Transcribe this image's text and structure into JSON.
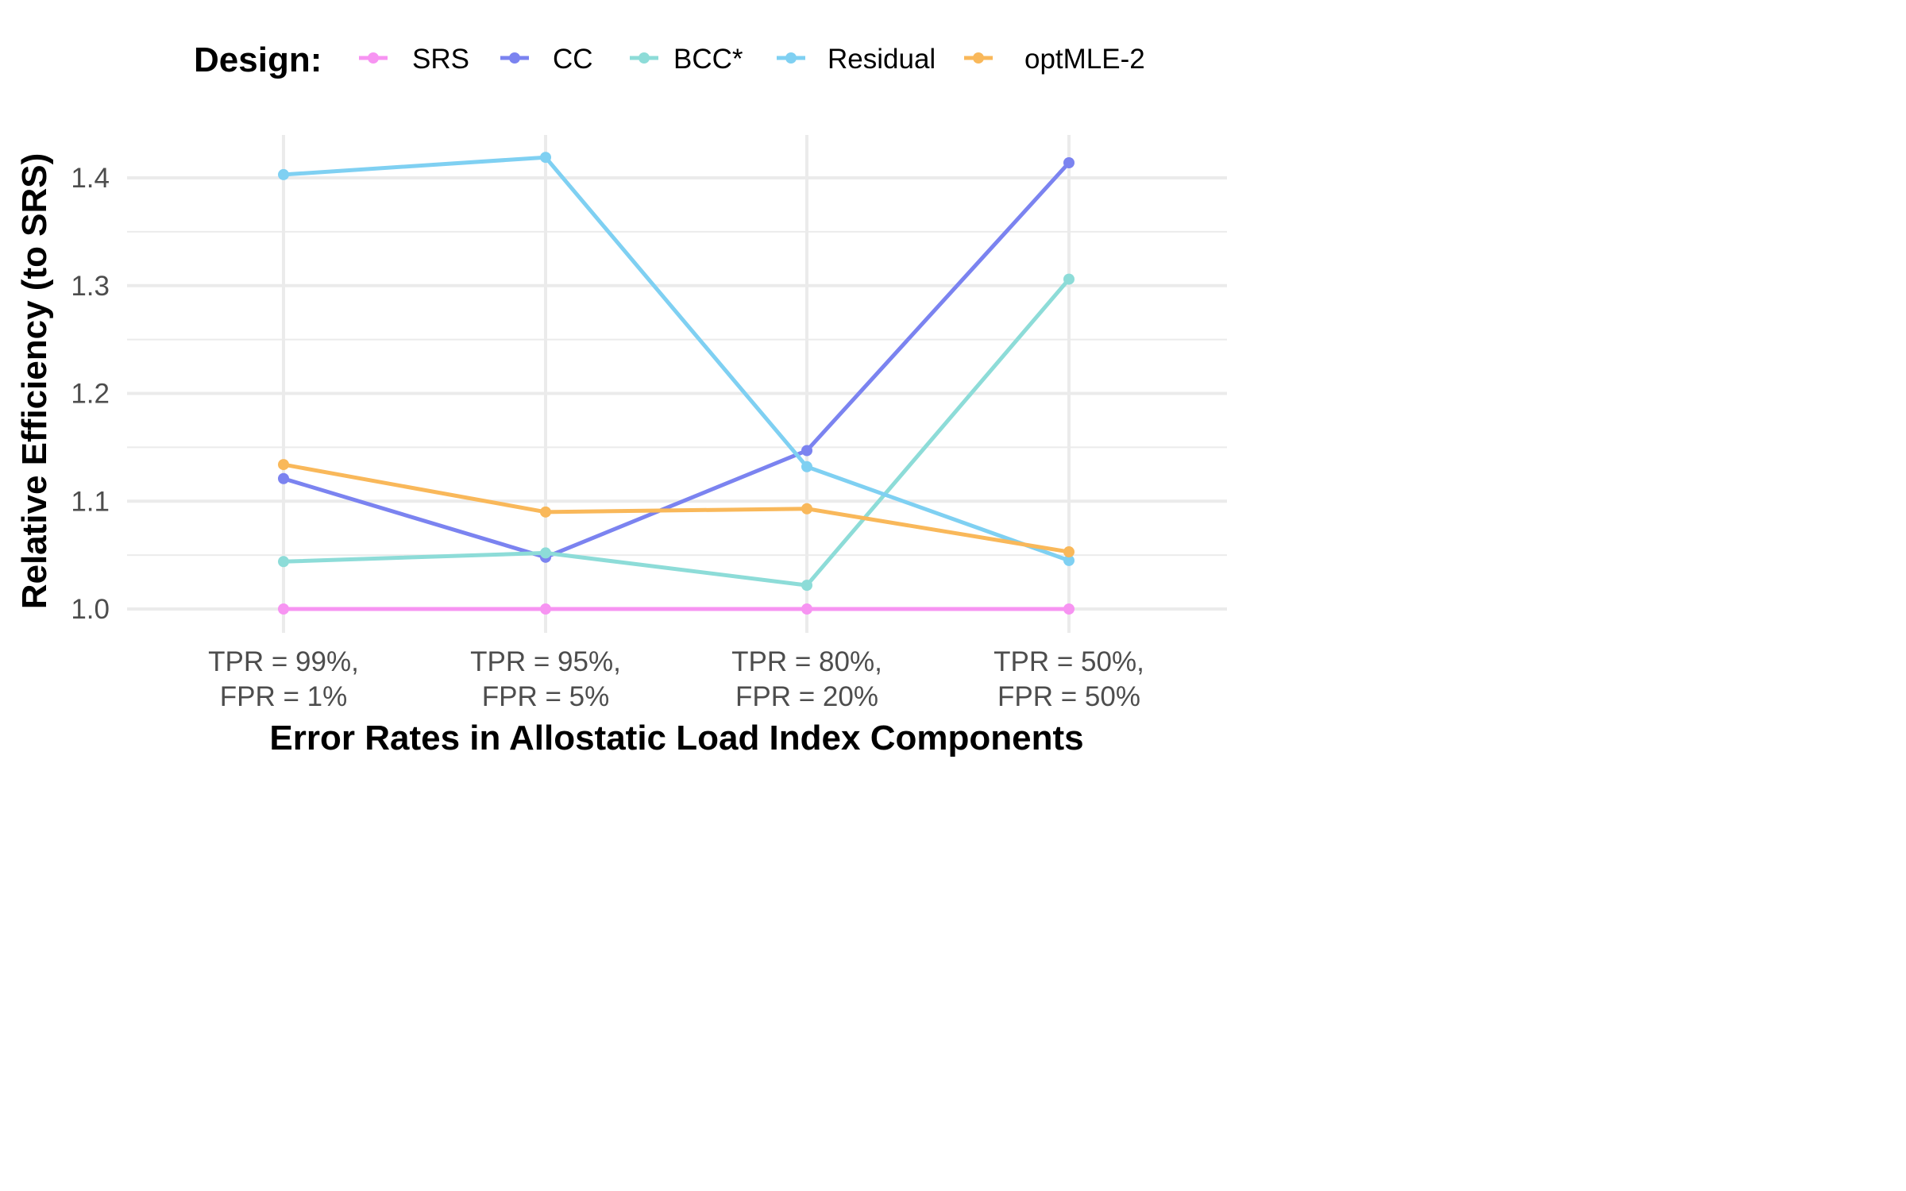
{
  "chart_data": {
    "type": "line",
    "legend_title": "Design:",
    "legend_position": "top",
    "xlabel": "Error Rates in Allostatic Load Index Components",
    "ylabel": "Relative Efficiency (to SRS)",
    "categories": [
      [
        "TPR = 99%,",
        "FPR = 1%"
      ],
      [
        "TPR = 95%,",
        "FPR = 5%"
      ],
      [
        "TPR = 80%,",
        "FPR = 20%"
      ],
      [
        "TPR = 50%,",
        "FPR = 50%"
      ]
    ],
    "ylim": [
      0.975,
      1.44
    ],
    "yticks": [
      "1.0",
      "1.1",
      "1.2",
      "1.3",
      "1.4"
    ],
    "grid": true,
    "series": [
      {
        "name": "SRS",
        "color": "#F794F2",
        "values": [
          1.0,
          1.0,
          1.0,
          1.0
        ]
      },
      {
        "name": "CC",
        "color": "#7B83F0",
        "values": [
          1.121,
          1.048,
          1.147,
          1.414
        ]
      },
      {
        "name": "BCC*",
        "color": "#8DDCD8",
        "values": [
          1.044,
          1.052,
          1.022,
          1.306
        ]
      },
      {
        "name": "Residual",
        "color": "#7FD0F2",
        "values": [
          1.403,
          1.419,
          1.132,
          1.045
        ]
      },
      {
        "name": "optMLE-2",
        "color": "#F9B85A",
        "values": [
          1.134,
          1.09,
          1.093,
          1.053
        ]
      }
    ]
  }
}
